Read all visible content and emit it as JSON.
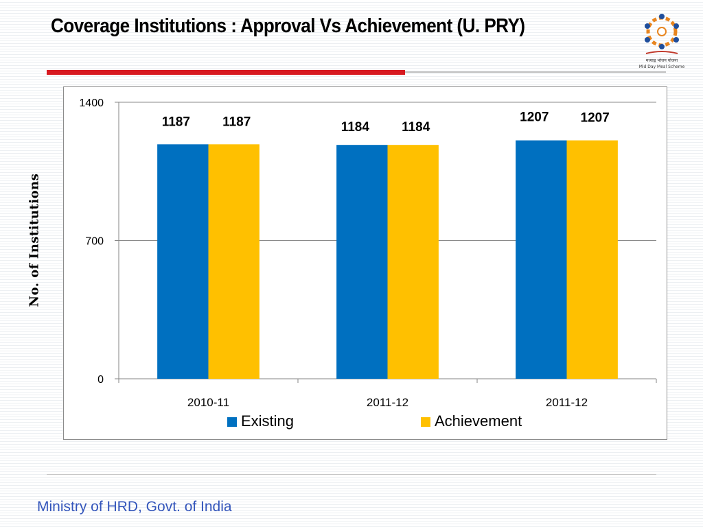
{
  "slide": {
    "title": "Coverage Institutions : Approval Vs Achievement (U. PRY)",
    "footer": "Ministry of HRD, Govt. of India"
  },
  "logo": {
    "icon": "mid-day-meal-scheme-logo",
    "text_hindi": "मध्याह्न भोजन योजना",
    "text_english": "Mid Day Meal Scheme"
  },
  "chart_data": {
    "type": "bar",
    "title": "",
    "xlabel": "",
    "ylabel": "No. of Institutions",
    "categories": [
      "2010-11",
      "2011-12",
      "2011-12"
    ],
    "series": [
      {
        "name": "Existing",
        "values": [
          1187,
          1184,
          1207
        ],
        "color": "#0070c0"
      },
      {
        "name": "Achievement",
        "values": [
          1187,
          1184,
          1207
        ],
        "color": "#ffc000"
      }
    ],
    "ylim": [
      0,
      1400
    ],
    "yticks": [
      0,
      700,
      1400
    ],
    "grid": true,
    "legend_position": "bottom"
  }
}
